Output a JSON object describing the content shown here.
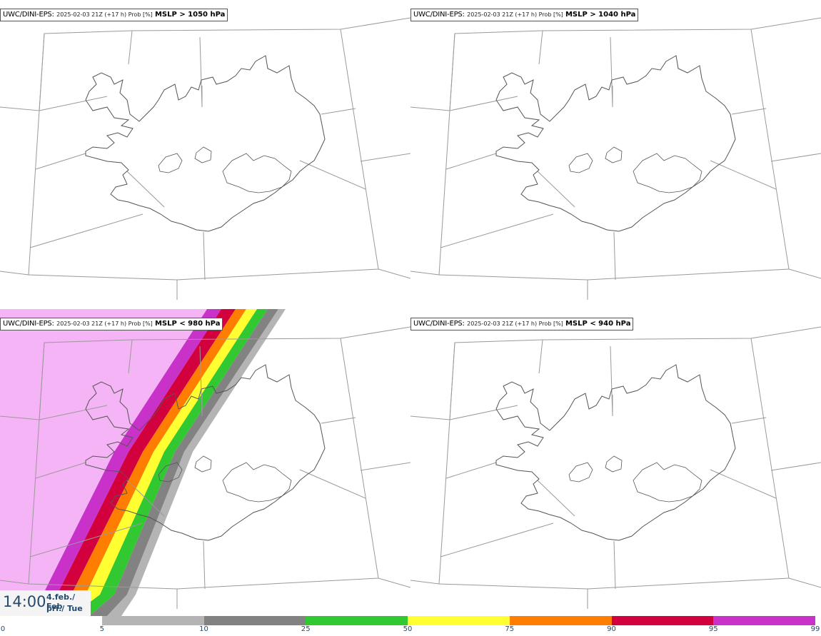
{
  "panels": [
    {
      "model": "UWC/DINI-EPS",
      "run": "2025-02-03 21Z (+17 h) Prob [%]",
      "threshold": "MSLP > 1050 hPa",
      "shaded": false
    },
    {
      "model": "UWC/DINI-EPS",
      "run": "2025-02-03 21Z (+17 h) Prob [%]",
      "threshold": "MSLP > 1040 hPa",
      "shaded": false
    },
    {
      "model": "UWC/DINI-EPS",
      "run": "2025-02-03 21Z (+17 h) Prob [%]",
      "threshold": "MSLP < 980 hPa",
      "shaded": true
    },
    {
      "model": "UWC/DINI-EPS",
      "run": "2025-02-03 21Z (+17 h) Prob [%]",
      "threshold": "MSLP < 940 hPa",
      "shaded": false
    }
  ],
  "time": {
    "hhmm": "14:00",
    "date_line": "4.feb./ Feb",
    "day_line": "þri./ Tue"
  },
  "legend": {
    "ticks": [
      "0",
      "5",
      "10",
      "25",
      "50",
      "75",
      "90",
      "95",
      "99"
    ],
    "colors": [
      "#ffffff",
      "#b4b4b4",
      "#828282",
      "#32c832",
      "#ffff32",
      "#ff7d00",
      "#d2003c",
      "#c832c8",
      "#f5b4f5"
    ]
  }
}
